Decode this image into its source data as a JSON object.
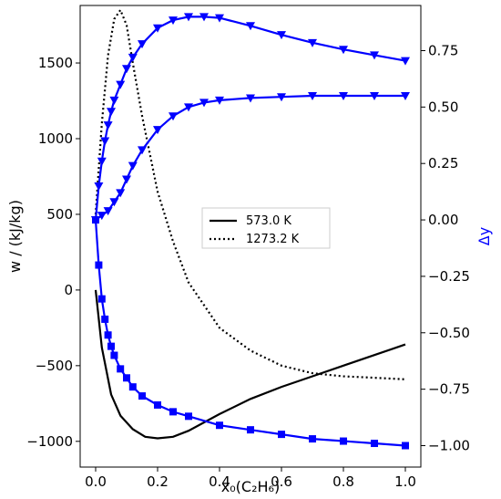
{
  "chart_data": {
    "type": "line",
    "xlabel": "x₀(C₂H₆)",
    "ylabel_left": "w / (kJ/kg)",
    "ylabel_right": "Δy",
    "xlim": [
      -0.05,
      1.05
    ],
    "ylim_left": [
      -1170,
      1880
    ],
    "ylim_right": [
      -1.095,
      0.95
    ],
    "x_ticks": [
      "0.0",
      "0.2",
      "0.4",
      "0.6",
      "0.8",
      "1.0"
    ],
    "y_left_ticks": [
      "−1000",
      "−500",
      "0",
      "500",
      "1000",
      "1500"
    ],
    "y_right_ticks": [
      "−1.00",
      "−0.75",
      "−0.50",
      "−0.25",
      "0.00",
      "0.25",
      "0.50",
      "0.75"
    ],
    "grid": false,
    "legend_position": "center",
    "colors": {
      "work": "#000000",
      "delta_y": "#0000ff"
    },
    "series": [
      {
        "name": "573.0 K",
        "axis": "left",
        "style": "solid",
        "x": [
          0.0,
          0.02,
          0.05,
          0.08,
          0.12,
          0.16,
          0.2,
          0.25,
          0.3,
          0.4,
          0.5,
          0.6,
          0.7,
          0.8,
          0.9,
          1.0
        ],
        "y": [
          0,
          -380,
          -690,
          -830,
          -920,
          -970,
          -980,
          -970,
          -930,
          -820,
          -720,
          -640,
          -570,
          -500,
          -430,
          -360
        ]
      },
      {
        "name": "1273.2 K",
        "axis": "left",
        "style": "dotted",
        "x": [
          0.0,
          0.02,
          0.04,
          0.06,
          0.08,
          0.1,
          0.12,
          0.15,
          0.2,
          0.25,
          0.3,
          0.4,
          0.5,
          0.6,
          0.7,
          0.8,
          0.9,
          1.0
        ],
        "y": [
          500,
          1100,
          1550,
          1790,
          1850,
          1750,
          1500,
          1150,
          650,
          320,
          50,
          -250,
          -400,
          -500,
          -550,
          -570,
          -580,
          -590
        ]
      }
    ],
    "delta_y_series": [
      {
        "axis": "right",
        "marker": "square",
        "x": [
          0.0,
          0.01,
          0.02,
          0.03,
          0.04,
          0.05,
          0.06,
          0.08,
          0.1,
          0.12,
          0.15,
          0.2,
          0.25,
          0.3,
          0.4,
          0.5,
          0.6,
          0.7,
          0.8,
          0.9,
          1.0
        ],
        "y": [
          0.0,
          -0.2,
          -0.35,
          -0.44,
          -0.51,
          -0.56,
          -0.6,
          -0.66,
          -0.7,
          -0.74,
          -0.78,
          -0.82,
          -0.85,
          -0.87,
          -0.91,
          -0.93,
          -0.95,
          -0.97,
          -0.98,
          -0.99,
          -1.0
        ]
      },
      {
        "axis": "right",
        "marker": "triangle-down",
        "x": [
          0.0,
          0.02,
          0.04,
          0.06,
          0.08,
          0.1,
          0.12,
          0.15,
          0.2,
          0.25,
          0.3,
          0.35,
          0.4,
          0.5,
          0.6,
          0.7,
          0.8,
          0.9,
          1.0
        ],
        "y": [
          0.0,
          0.02,
          0.04,
          0.08,
          0.12,
          0.18,
          0.24,
          0.31,
          0.4,
          0.46,
          0.5,
          0.52,
          0.53,
          0.54,
          0.545,
          0.55,
          0.55,
          0.55,
          0.55
        ]
      },
      {
        "axis": "right",
        "marker": "triangle-down",
        "x": [
          0.0,
          0.01,
          0.02,
          0.03,
          0.04,
          0.05,
          0.06,
          0.08,
          0.1,
          0.12,
          0.15,
          0.2,
          0.25,
          0.3,
          0.35,
          0.4,
          0.5,
          0.6,
          0.7,
          0.8,
          0.9,
          1.0
        ],
        "y": [
          0.0,
          0.15,
          0.26,
          0.35,
          0.42,
          0.48,
          0.53,
          0.6,
          0.67,
          0.72,
          0.78,
          0.85,
          0.885,
          0.9,
          0.9,
          0.895,
          0.86,
          0.82,
          0.785,
          0.755,
          0.73,
          0.705
        ]
      }
    ]
  }
}
